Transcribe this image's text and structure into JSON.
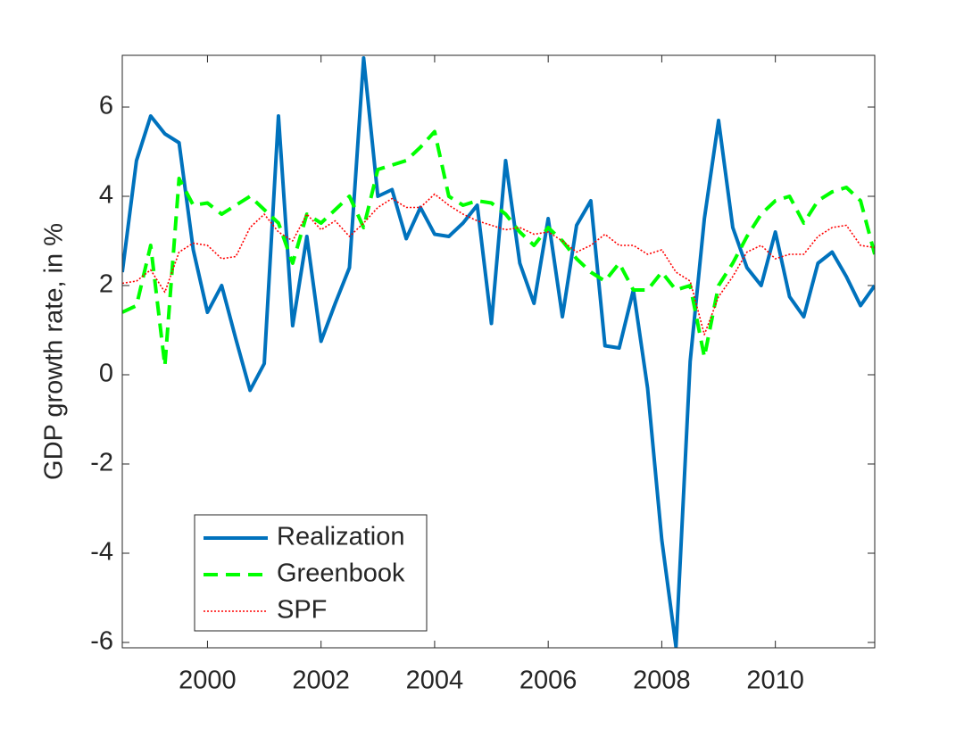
{
  "chart_data": {
    "type": "line",
    "ylabel": "GDP growth rate, in %",
    "x": [
      1998.5,
      1998.75,
      1999,
      1999.25,
      1999.5,
      1999.75,
      2000,
      2000.25,
      2000.5,
      2000.75,
      2001,
      2001.25,
      2001.5,
      2001.75,
      2002,
      2002.25,
      2002.5,
      2002.75,
      2003,
      2003.25,
      2003.5,
      2003.75,
      2004,
      2004.25,
      2004.5,
      2004.75,
      2005,
      2005.25,
      2005.5,
      2005.75,
      2006,
      2006.25,
      2006.5,
      2006.75,
      2007,
      2007.25,
      2007.5,
      2007.75,
      2008,
      2008.25,
      2008.5,
      2008.75,
      2009,
      2009.25,
      2009.5,
      2009.75,
      2010,
      2010.25,
      2010.5,
      2010.75,
      2011,
      2011.25,
      2011.5,
      2011.75
    ],
    "series": [
      {
        "name": "Realization",
        "color": "#0072bd",
        "style": "solid",
        "values": [
          2.3,
          4.8,
          5.8,
          5.4,
          5.2,
          2.8,
          1.4,
          2.0,
          0.8,
          -0.35,
          0.25,
          5.8,
          1.1,
          3.1,
          0.75,
          1.6,
          2.4,
          7.1,
          4.0,
          4.15,
          3.05,
          3.75,
          3.15,
          3.1,
          3.4,
          3.8,
          1.15,
          4.8,
          2.5,
          1.6,
          3.5,
          1.3,
          3.35,
          3.9,
          0.65,
          0.6,
          1.9,
          -0.3,
          -3.7,
          -6.1,
          0.3,
          3.5,
          5.7,
          3.3,
          2.4,
          2.0,
          3.2,
          1.75,
          1.3,
          2.5,
          2.75,
          2.2,
          1.55,
          2.0
        ]
      },
      {
        "name": "Greenbook",
        "color": "#00ff00",
        "style": "dashed",
        "values": [
          1.4,
          1.55,
          2.9,
          0.2,
          4.4,
          3.8,
          3.85,
          3.6,
          3.8,
          4.0,
          3.7,
          3.4,
          2.5,
          3.6,
          3.4,
          3.7,
          4.0,
          3.3,
          4.6,
          4.7,
          4.8,
          5.1,
          5.45,
          4.0,
          3.8,
          3.9,
          3.85,
          3.6,
          3.2,
          2.9,
          3.3,
          3.0,
          2.6,
          2.3,
          2.1,
          2.5,
          1.9,
          1.9,
          2.3,
          1.9,
          2.0,
          0.4,
          2.0,
          2.5,
          3.1,
          3.6,
          3.9,
          4.0,
          3.4,
          3.9,
          4.1,
          4.2,
          3.9,
          2.7
        ]
      },
      {
        "name": "SPF",
        "color": "#ff0000",
        "style": "dotted",
        "values": [
          2.05,
          2.1,
          2.35,
          1.85,
          2.75,
          2.95,
          2.9,
          2.6,
          2.65,
          3.3,
          3.6,
          3.2,
          3.0,
          3.6,
          3.25,
          3.45,
          3.1,
          3.4,
          3.75,
          3.95,
          3.75,
          3.75,
          4.05,
          3.8,
          3.6,
          3.45,
          3.35,
          3.25,
          3.3,
          3.15,
          3.2,
          3.0,
          2.75,
          2.9,
          3.15,
          2.9,
          2.9,
          2.7,
          2.8,
          2.3,
          2.1,
          0.9,
          1.75,
          2.2,
          2.75,
          2.9,
          2.6,
          2.7,
          2.7,
          3.1,
          3.3,
          3.35,
          2.9,
          2.85
        ]
      }
    ],
    "xlim": [
      1998.5,
      2011.75
    ],
    "xticks": [
      2000,
      2002,
      2004,
      2006,
      2008,
      2010
    ],
    "ylim": [
      -6.12,
      7.16
    ],
    "yticks": [
      -6,
      -4,
      -2,
      0,
      2,
      4,
      6
    ],
    "legend": "lower-left",
    "grid": false
  }
}
